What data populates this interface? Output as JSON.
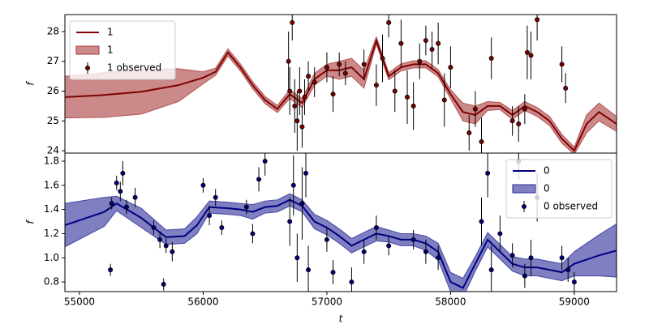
{
  "chart_data": [
    {
      "type": "line",
      "ylabel": "f",
      "xlim": [
        54882,
        59342
      ],
      "ylim": [
        23.92,
        28.57
      ],
      "yticks": [
        24,
        25,
        26,
        27,
        28
      ],
      "legend": "upper left",
      "series": [
        {
          "kind": "line",
          "name": "1",
          "color": "#800000",
          "x": [
            54882,
            55200,
            55500,
            55800,
            56000,
            56100,
            56200,
            56300,
            56400,
            56500,
            56600,
            56700,
            56800,
            56900,
            57000,
            57100,
            57200,
            57300,
            57400,
            57500,
            57600,
            57700,
            57800,
            57900,
            58000,
            58100,
            58200,
            58300,
            58400,
            58500,
            58600,
            58700,
            58800,
            58900,
            59000,
            59100,
            59200,
            59342
          ],
          "values": [
            25.8,
            25.87,
            25.98,
            26.2,
            26.45,
            26.65,
            27.3,
            26.8,
            26.2,
            25.7,
            25.4,
            25.9,
            25.6,
            26.4,
            26.7,
            26.7,
            26.8,
            26.4,
            27.7,
            26.5,
            26.8,
            26.9,
            26.9,
            26.6,
            25.9,
            25.3,
            25.2,
            25.5,
            25.5,
            25.2,
            25.5,
            25.3,
            25.0,
            24.4,
            24.0,
            24.9,
            25.3,
            24.9
          ]
        },
        {
          "kind": "band",
          "name": "1",
          "color": "#a83a3a",
          "x": [
            54882,
            55200,
            55500,
            55800,
            56000,
            56100,
            56200,
            56300,
            56400,
            56500,
            56600,
            56700,
            56800,
            56900,
            57000,
            57100,
            57200,
            57300,
            57400,
            57500,
            57600,
            57700,
            57800,
            57900,
            58000,
            58100,
            58200,
            58300,
            58400,
            58500,
            58600,
            58700,
            58800,
            58900,
            59000,
            59100,
            59200,
            59342
          ],
          "lower": [
            25.1,
            25.12,
            25.23,
            25.65,
            26.25,
            26.53,
            27.18,
            26.68,
            26.08,
            25.58,
            25.28,
            25.75,
            25.45,
            26.2,
            26.5,
            26.4,
            26.5,
            26.1,
            27.58,
            26.38,
            26.68,
            26.78,
            26.78,
            26.48,
            25.75,
            25.0,
            24.9,
            25.35,
            25.38,
            25.05,
            25.35,
            25.15,
            24.85,
            24.25,
            23.88,
            24.6,
            25.0,
            24.65
          ],
          "upper": [
            26.5,
            26.62,
            26.73,
            26.75,
            26.65,
            26.77,
            27.42,
            26.92,
            26.32,
            25.82,
            25.52,
            26.05,
            25.75,
            26.6,
            26.9,
            27.0,
            27.1,
            26.7,
            27.82,
            26.62,
            26.92,
            27.02,
            27.02,
            26.72,
            26.05,
            25.6,
            25.5,
            25.65,
            25.62,
            25.35,
            25.65,
            25.45,
            25.15,
            24.55,
            24.12,
            25.2,
            25.6,
            25.15
          ]
        },
        {
          "kind": "errorbar",
          "name": "1 observed",
          "color": "#800000",
          "x": [
            56690,
            56700,
            56720,
            56740,
            56760,
            56780,
            56800,
            56820,
            56850,
            56900,
            57000,
            57050,
            57100,
            57150,
            57300,
            57400,
            57450,
            57500,
            57550,
            57600,
            57650,
            57700,
            57750,
            57800,
            57850,
            57900,
            57950,
            58000,
            58150,
            58200,
            58250,
            58330,
            58500,
            58550,
            58600,
            58620,
            58650,
            58700,
            58900,
            58930
          ],
          "values": [
            27.0,
            26.0,
            28.3,
            25.5,
            25.0,
            26.0,
            24.8,
            25.8,
            26.5,
            26.3,
            26.8,
            25.9,
            26.9,
            26.6,
            26.9,
            26.2,
            27.1,
            28.3,
            26.0,
            27.6,
            25.8,
            25.5,
            27.0,
            27.7,
            27.4,
            27.6,
            25.7,
            26.8,
            24.6,
            25.4,
            24.3,
            27.1,
            25.0,
            24.9,
            25.4,
            27.3,
            27.2,
            28.4,
            26.9,
            26.1
          ],
          "errors": [
            1.0,
            0.8,
            0.6,
            0.9,
            1.0,
            0.8,
            0.7,
            0.6,
            0.5,
            0.5,
            0.5,
            0.6,
            0.4,
            0.4,
            0.5,
            0.7,
            0.8,
            0.5,
            0.7,
            0.8,
            0.9,
            0.8,
            0.6,
            0.5,
            0.6,
            0.7,
            0.9,
            0.7,
            0.6,
            0.6,
            0.8,
            0.7,
            0.5,
            0.6,
            0.5,
            0.9,
            0.8,
            0.7,
            0.6,
            0.5
          ]
        }
      ]
    },
    {
      "type": "line",
      "ylabel": "f",
      "xlabel": "t",
      "xlim": [
        54882,
        59342
      ],
      "ylim": [
        0.72,
        1.867
      ],
      "xticks": [
        55000,
        56000,
        57000,
        58000,
        59000
      ],
      "yticks": [
        0.8,
        {
          "value": 1,
          "label": "1.0"
        },
        1.2,
        1.4,
        1.6,
        1.8
      ],
      "legend": "upper right",
      "series": [
        {
          "kind": "line",
          "name": "0",
          "color": "#000080",
          "x": [
            54882,
            55200,
            55300,
            55500,
            55700,
            55850,
            55950,
            56050,
            56200,
            56300,
            56400,
            56500,
            56600,
            56700,
            56800,
            56900,
            57000,
            57100,
            57200,
            57300,
            57400,
            57500,
            57600,
            57700,
            57800,
            57900,
            58000,
            58100,
            58200,
            58300,
            58400,
            58500,
            58600,
            58700,
            58800,
            58900,
            59000,
            59200,
            59342
          ],
          "values": [
            1.27,
            1.38,
            1.45,
            1.33,
            1.17,
            1.18,
            1.27,
            1.42,
            1.41,
            1.4,
            1.38,
            1.42,
            1.43,
            1.48,
            1.43,
            1.3,
            1.25,
            1.18,
            1.1,
            1.15,
            1.2,
            1.18,
            1.15,
            1.15,
            1.12,
            1.05,
            0.8,
            0.75,
            0.95,
            1.15,
            1.05,
            0.95,
            0.92,
            0.92,
            0.9,
            0.88,
            0.95,
            1.02,
            1.06
          ]
        },
        {
          "kind": "band",
          "name": "0",
          "color": "#2a2a9a",
          "x": [
            54882,
            55200,
            55300,
            55500,
            55700,
            55850,
            55950,
            56050,
            56200,
            56300,
            56400,
            56500,
            56600,
            56700,
            56800,
            56900,
            57000,
            57100,
            57200,
            57300,
            57400,
            57500,
            57600,
            57700,
            57800,
            57900,
            58000,
            58100,
            58200,
            58300,
            58400,
            58500,
            58600,
            58700,
            58800,
            58900,
            59000,
            59200,
            59342
          ],
          "lower": [
            1.09,
            1.26,
            1.39,
            1.25,
            1.11,
            1.12,
            1.2,
            1.37,
            1.36,
            1.35,
            1.32,
            1.37,
            1.38,
            1.43,
            1.38,
            1.24,
            1.19,
            1.12,
            1.04,
            1.09,
            1.14,
            1.13,
            1.1,
            1.1,
            1.06,
            0.98,
            0.72,
            0.67,
            0.89,
            1.09,
            0.99,
            0.89,
            0.85,
            0.85,
            0.83,
            0.81,
            0.85,
            0.85,
            0.84
          ],
          "upper": [
            1.45,
            1.5,
            1.51,
            1.41,
            1.23,
            1.24,
            1.34,
            1.47,
            1.46,
            1.45,
            1.44,
            1.47,
            1.48,
            1.53,
            1.48,
            1.36,
            1.31,
            1.24,
            1.16,
            1.21,
            1.26,
            1.23,
            1.2,
            1.2,
            1.18,
            1.12,
            0.88,
            0.83,
            1.01,
            1.21,
            1.11,
            1.01,
            0.99,
            0.99,
            0.97,
            0.95,
            1.05,
            1.19,
            1.28
          ]
        },
        {
          "kind": "errorbar",
          "name": "0 observed",
          "color": "#000080",
          "x": [
            55250,
            55260,
            55300,
            55330,
            55350,
            55380,
            55450,
            55600,
            55650,
            55680,
            55700,
            55750,
            56000,
            56050,
            56100,
            56150,
            56350,
            56400,
            56450,
            56500,
            56700,
            56730,
            56760,
            56800,
            56830,
            56850,
            57000,
            57050,
            57200,
            57300,
            57400,
            57500,
            57700,
            57800,
            57900,
            58250,
            58300,
            58330,
            58400,
            58500,
            58550,
            58600,
            58650,
            58700,
            58900,
            58950,
            59000
          ],
          "values": [
            0.9,
            1.45,
            1.62,
            1.55,
            1.7,
            1.42,
            1.5,
            1.25,
            1.15,
            0.78,
            1.1,
            1.05,
            1.6,
            1.35,
            1.5,
            1.25,
            1.42,
            1.2,
            1.65,
            1.8,
            1.3,
            1.6,
            1.0,
            1.45,
            1.7,
            0.9,
            1.15,
            0.88,
            0.8,
            1.05,
            1.25,
            1.1,
            1.15,
            1.05,
            1.0,
            1.3,
            1.7,
            0.9,
            1.2,
            1.02,
            1.8,
            0.85,
            1.0,
            1.5,
            1.0,
            0.9,
            0.8
          ],
          "errors": [
            0.05,
            0.05,
            0.06,
            0.08,
            0.1,
            0.06,
            0.08,
            0.06,
            0.07,
            0.05,
            0.06,
            0.08,
            0.06,
            0.08,
            0.07,
            0.06,
            0.06,
            0.08,
            0.1,
            0.12,
            0.2,
            0.25,
            0.2,
            0.3,
            0.2,
            0.2,
            0.1,
            0.1,
            0.12,
            0.1,
            0.1,
            0.08,
            0.08,
            0.1,
            0.1,
            0.2,
            0.2,
            0.2,
            0.15,
            0.1,
            0.15,
            0.1,
            0.15,
            0.2,
            0.1,
            0.1,
            0.08
          ]
        }
      ]
    }
  ]
}
